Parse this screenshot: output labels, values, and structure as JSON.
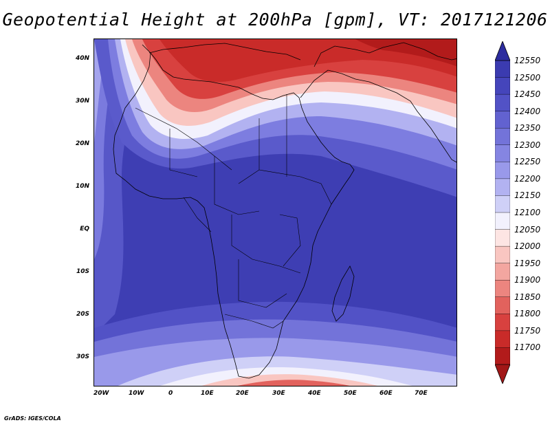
{
  "title": "Geopotential Height at 200hPa [gpm], VT: 2017121206",
  "credit": "GrADS: IGES/COLA",
  "map": {
    "lat_labels": [
      "40N",
      "30N",
      "20N",
      "10N",
      "EQ",
      "10S",
      "20S",
      "30S"
    ],
    "lon_labels": [
      "20W",
      "10W",
      "0",
      "10E",
      "20E",
      "30E",
      "40E",
      "50E",
      "60E",
      "70E"
    ],
    "lat_range": [
      -37,
      45
    ],
    "lon_range": [
      -22,
      80
    ],
    "field": "Geopotential Height",
    "level": "200hPa",
    "units": "gpm",
    "valid_time": "2017121206"
  },
  "colorbar": {
    "levels": [
      "12550",
      "12500",
      "12450",
      "12400",
      "12350",
      "12300",
      "12250",
      "12200",
      "12150",
      "12100",
      "12050",
      "12000",
      "11950",
      "11900",
      "11850",
      "11800",
      "11750",
      "11700"
    ],
    "colors": [
      "#3b3bb0",
      "#4545bb",
      "#5252c6",
      "#6262d0",
      "#7373d9",
      "#8585e2",
      "#9999ea",
      "#b2b2f1",
      "#cfd0f7",
      "#f2f1fd",
      "#fde5e3",
      "#f9c6c1",
      "#f3a6a0",
      "#ec857f",
      "#e2625d",
      "#d8413f",
      "#c92b29",
      "#b21b1b"
    ],
    "top_arrow_color": "#2c2c9e",
    "bottom_arrow_color": "#a11717"
  },
  "colors": {
    "deep_red": "#b21b1b",
    "deep_blue": "#3b3bb0"
  }
}
